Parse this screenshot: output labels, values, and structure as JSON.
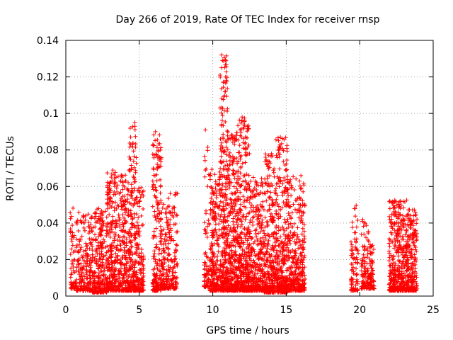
{
  "chart_data": {
    "type": "scatter",
    "title": "Day 266 of 2019, Rate Of TEC Index for receiver rnsp",
    "xlabel": "GPS time / hours",
    "ylabel": "ROTI / TECUs",
    "xlim": [
      0,
      25
    ],
    "ylim": [
      0,
      0.14
    ],
    "x_ticks": [
      0,
      5,
      10,
      15,
      20,
      25
    ],
    "x_tick_labels": [
      "0",
      "5",
      "10",
      "15",
      "20",
      "25"
    ],
    "y_ticks": [
      0,
      0.02,
      0.04,
      0.06,
      0.08,
      0.1,
      0.12,
      0.14
    ],
    "y_tick_labels": [
      "0",
      "0.02",
      "0.04",
      "0.06",
      "0.08",
      "0.1",
      "0.12",
      "0.14"
    ],
    "grid": true,
    "marker": "+",
    "series": [
      {
        "name": "ROTI",
        "color": "#ff0000",
        "clusters": [
          {
            "x_range": [
              0.3,
              0.7
            ],
            "y_range": [
              0.004,
              0.05
            ],
            "count": 60
          },
          {
            "x_range": [
              0.7,
              1.8
            ],
            "y_range": [
              0.003,
              0.046
            ],
            "count": 220
          },
          {
            "x_range": [
              1.8,
              2.8
            ],
            "y_range": [
              0.002,
              0.048
            ],
            "count": 260
          },
          {
            "x_range": [
              2.8,
              3.3
            ],
            "y_range": [
              0.003,
              0.069
            ],
            "count": 180
          },
          {
            "x_range": [
              3.3,
              4.3
            ],
            "y_range": [
              0.003,
              0.068
            ],
            "count": 300
          },
          {
            "x_range": [
              4.3,
              4.8
            ],
            "y_range": [
              0.003,
              0.095
            ],
            "count": 200
          },
          {
            "x_range": [
              4.8,
              5.3
            ],
            "y_range": [
              0.003,
              0.06
            ],
            "count": 140
          },
          {
            "x_range": [
              5.9,
              6.5
            ],
            "y_range": [
              0.003,
              0.09
            ],
            "count": 200
          },
          {
            "x_range": [
              6.5,
              7.0
            ],
            "y_range": [
              0.004,
              0.055
            ],
            "count": 120
          },
          {
            "x_range": [
              7.0,
              7.6
            ],
            "y_range": [
              0.004,
              0.058
            ],
            "count": 110
          },
          {
            "x_range": [
              9.4,
              9.8
            ],
            "y_range": [
              0.005,
              0.091
            ],
            "count": 70
          },
          {
            "x_range": [
              9.8,
              10.5
            ],
            "y_range": [
              0.003,
              0.07
            ],
            "count": 240
          },
          {
            "x_range": [
              10.5,
              11.0
            ],
            "y_range": [
              0.003,
              0.132
            ],
            "count": 280
          },
          {
            "x_range": [
              11.0,
              11.7
            ],
            "y_range": [
              0.003,
              0.09
            ],
            "count": 320
          },
          {
            "x_range": [
              11.7,
              12.5
            ],
            "y_range": [
              0.003,
              0.098
            ],
            "count": 360
          },
          {
            "x_range": [
              12.5,
              13.5
            ],
            "y_range": [
              0.003,
              0.065
            ],
            "count": 320
          },
          {
            "x_range": [
              13.5,
              14.3
            ],
            "y_range": [
              0.002,
              0.078
            ],
            "count": 300
          },
          {
            "x_range": [
              14.3,
              15.1
            ],
            "y_range": [
              0.002,
              0.087
            ],
            "count": 300
          },
          {
            "x_range": [
              15.1,
              16.3
            ],
            "y_range": [
              0.003,
              0.066
            ],
            "count": 340
          },
          {
            "x_range": [
              19.4,
              19.9
            ],
            "y_range": [
              0.003,
              0.05
            ],
            "count": 80
          },
          {
            "x_range": [
              20.1,
              20.6
            ],
            "y_range": [
              0.004,
              0.042
            ],
            "count": 90
          },
          {
            "x_range": [
              20.6,
              21.0
            ],
            "y_range": [
              0.004,
              0.03
            ],
            "count": 70
          },
          {
            "x_range": [
              22.0,
              22.6
            ],
            "y_range": [
              0.003,
              0.053
            ],
            "count": 200
          },
          {
            "x_range": [
              22.6,
              23.3
            ],
            "y_range": [
              0.003,
              0.053
            ],
            "count": 220
          },
          {
            "x_range": [
              23.3,
              23.9
            ],
            "y_range": [
              0.003,
              0.048
            ],
            "count": 180
          }
        ],
        "labeled_peaks": [
          {
            "x": 10.6,
            "y": 0.132
          },
          {
            "x": 10.6,
            "y": 0.125
          },
          {
            "x": 10.5,
            "y": 0.121
          },
          {
            "x": 10.5,
            "y": 0.103
          },
          {
            "x": 12.0,
            "y": 0.098
          },
          {
            "x": 4.7,
            "y": 0.095
          },
          {
            "x": 4.7,
            "y": 0.093
          },
          {
            "x": 9.5,
            "y": 0.091
          },
          {
            "x": 6.1,
            "y": 0.09
          },
          {
            "x": 10.6,
            "y": 0.094
          },
          {
            "x": 14.6,
            "y": 0.087
          },
          {
            "x": 11.6,
            "y": 0.088
          },
          {
            "x": 14.0,
            "y": 0.078
          },
          {
            "x": 9.5,
            "y": 0.069
          },
          {
            "x": 3.2,
            "y": 0.069
          },
          {
            "x": 16.0,
            "y": 0.066
          },
          {
            "x": 20.2,
            "y": 0.042
          }
        ]
      }
    ]
  }
}
